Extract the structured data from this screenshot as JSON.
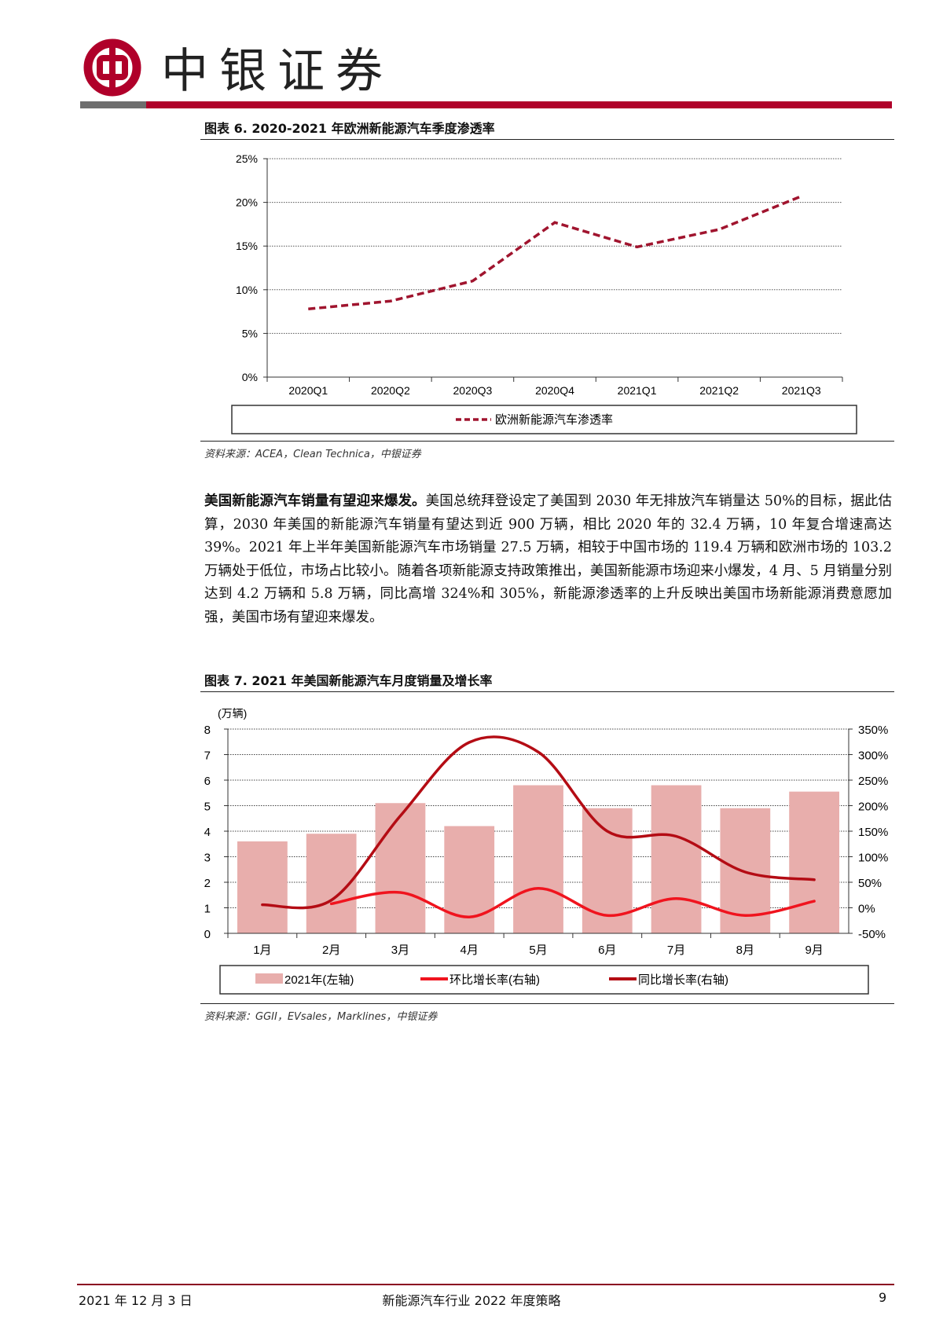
{
  "header": {
    "brand": "中银证券",
    "brand_color": "#b0002a"
  },
  "figure6": {
    "title": "图表 6. 2020-2021 年欧洲新能源汽车季度渗透率",
    "source": "资料来源：ACEA，Clean Technica，中银证券"
  },
  "figure7": {
    "title": "图表 7. 2021 年美国新能源汽车月度销量及增长率",
    "source": "资料来源：GGII，EVsales，Marklines，中银证券"
  },
  "paragraph": {
    "lead": "美国新能源汽车销量有望迎来爆发。",
    "body": "美国总统拜登设定了美国到 2030 年无排放汽车销量达 50%的目标，据此估算，2030 年美国的新能源汽车销量有望达到近 900 万辆，相比 2020 年的 32.4 万辆，10 年复合增速高达 39%。2021 年上半年美国新能源汽车市场销量 27.5 万辆，相较于中国市场的 119.4 万辆和欧洲市场的 103.2 万辆处于低位，市场占比较小。随着各项新能源支持政策推出，美国新能源市场迎来小爆发，4 月、5 月销量分别达到 4.2 万辆和 5.8 万辆，同比高增 324%和 305%，新能源渗透率的上升反映出美国市场新能源消费意愿加强，美国市场有望迎来爆发。"
  },
  "footer": {
    "date": "2021 年 12 月 3 日",
    "doc_title": "新能源汽车行业 2022 年度策略",
    "page": "9"
  },
  "chart_data": [
    {
      "type": "line",
      "title": "2020-2021 年欧洲新能源汽车季度渗透率",
      "categories": [
        "2020Q1",
        "2020Q2",
        "2020Q3",
        "2020Q4",
        "2021Q1",
        "2021Q2",
        "2021Q3"
      ],
      "series": [
        {
          "name": "欧洲新能源汽车渗透率",
          "values": [
            7.8,
            8.7,
            11.0,
            17.7,
            14.9,
            16.9,
            20.7
          ],
          "color": "#a0142e",
          "style": "dashed"
        }
      ],
      "ylim": [
        0,
        25
      ],
      "yticks": [
        "0%",
        "5%",
        "10%",
        "15%",
        "20%",
        "25%"
      ],
      "grid": true,
      "legend": "bottom"
    },
    {
      "type": "bar",
      "title": "2021 年美国新能源汽车月度销量及增长率",
      "ylabel": "(万辆)",
      "categories": [
        "1月",
        "2月",
        "3月",
        "4月",
        "5月",
        "6月",
        "7月",
        "8月",
        "9月"
      ],
      "series": [
        {
          "name": "2021年(左轴)",
          "type": "bar",
          "axis": "left",
          "values": [
            3.6,
            3.9,
            5.1,
            4.2,
            5.8,
            4.9,
            5.8,
            4.9,
            5.55
          ],
          "color": "#e8aeac"
        },
        {
          "name": "环比增长率(右轴)",
          "type": "line",
          "axis": "right",
          "values": [
            null,
            8,
            30,
            -18,
            38,
            -15,
            18,
            -15,
            13
          ],
          "color": "#f0141e"
        },
        {
          "name": "同比增长率(右轴)",
          "type": "line",
          "axis": "right",
          "values": [
            6,
            15,
            180,
            324,
            305,
            150,
            140,
            70,
            55
          ],
          "color": "#b40c14"
        }
      ],
      "ylim_left": [
        0,
        8
      ],
      "yticks_left": [
        "0",
        "1",
        "2",
        "3",
        "4",
        "5",
        "6",
        "7",
        "8"
      ],
      "ylim_right": [
        -50,
        350
      ],
      "yticks_right": [
        "-50%",
        "0%",
        "50%",
        "100%",
        "150%",
        "200%",
        "250%",
        "300%",
        "350%"
      ],
      "grid": true,
      "legend": "bottom"
    }
  ]
}
